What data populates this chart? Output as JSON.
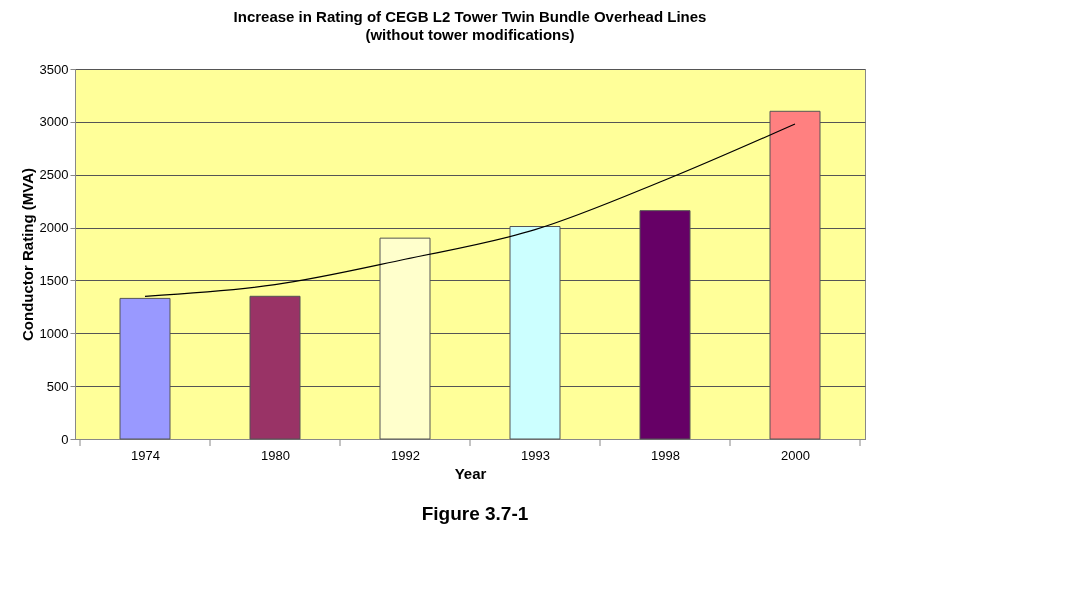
{
  "chart_data": {
    "type": "bar",
    "title": "Increase in Rating of CEGB L2 Tower Twin Bundle Overhead Lines",
    "subtitle": "(without tower modifications)",
    "xlabel": "Year",
    "ylabel": "Conductor Rating (MVA)",
    "categories": [
      "1974",
      "1980",
      "1992",
      "1993",
      "1998",
      "2000"
    ],
    "series": [
      {
        "colors": [
          "#9999ff",
          "#993366",
          "#ffffcc",
          "#ccffff",
          "#660066",
          "#ff8080"
        ],
        "values": [
          1330,
          1350,
          1900,
          2010,
          2160,
          3100
        ]
      },
      {
        "type": "line",
        "color": "#000000",
        "values": [
          1350,
          1460,
          1700,
          1980,
          2450,
          2980
        ]
      }
    ],
    "ylim": [
      0,
      3500
    ],
    "yticks": [
      0,
      500,
      1000,
      1500,
      2000,
      2500,
      3000,
      3500
    ],
    "grid": "y",
    "annotations": [
      "Figure 3.7-1"
    ]
  }
}
